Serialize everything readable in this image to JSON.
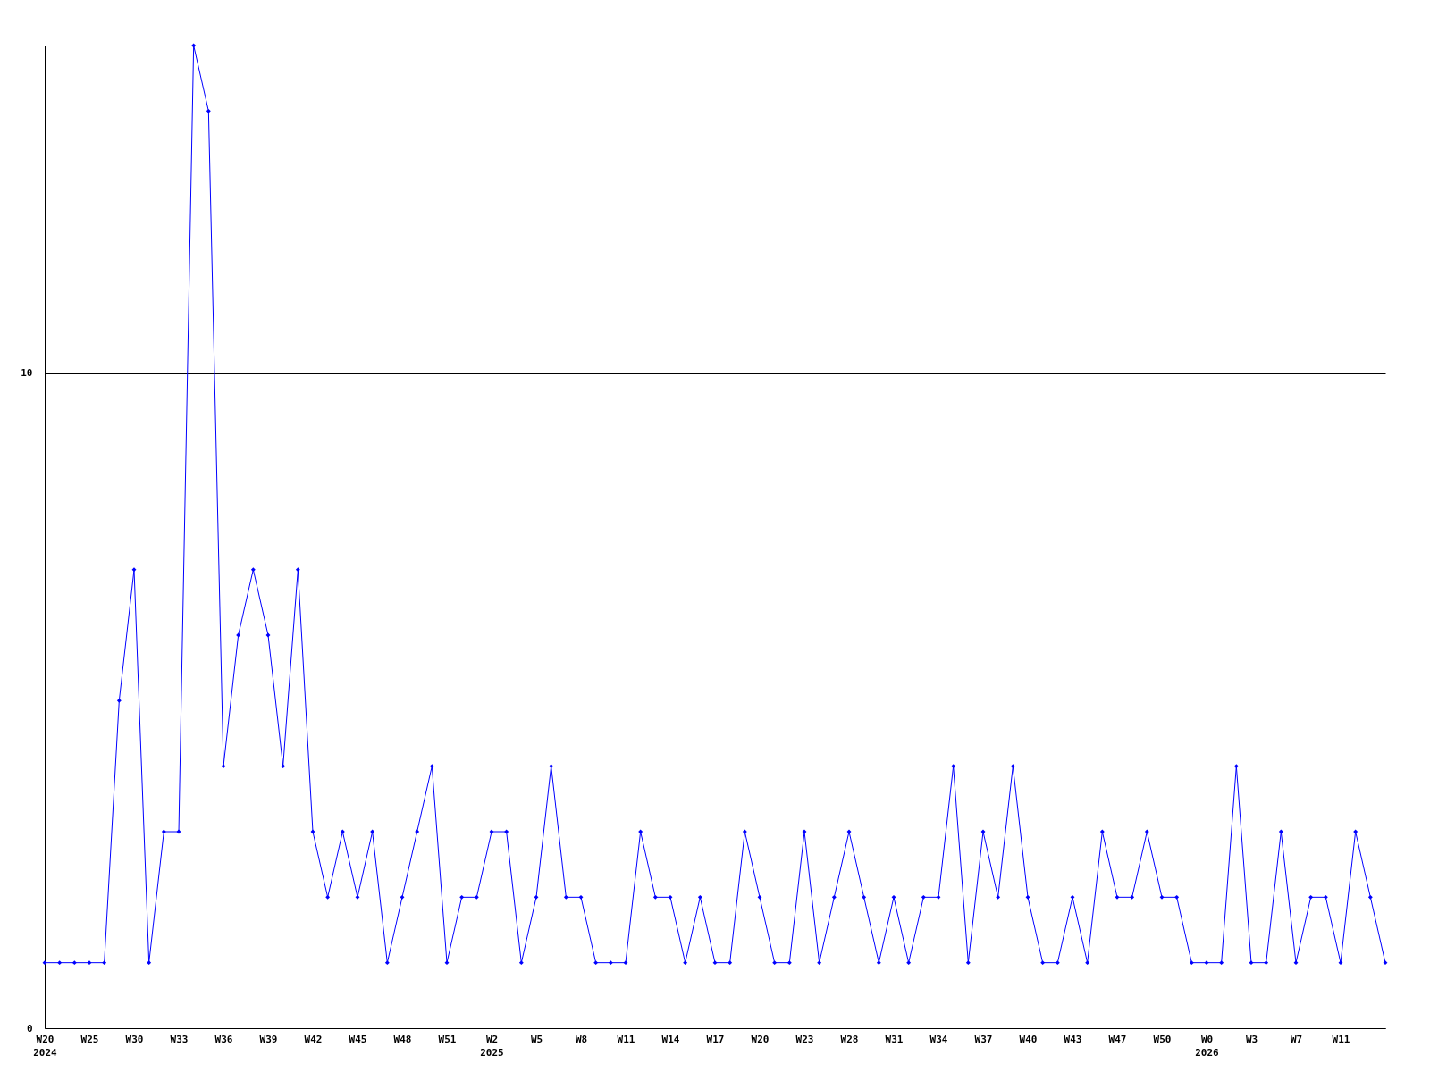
{
  "chart_data": {
    "type": "line",
    "categories": [
      "W20\n2024",
      null,
      null,
      "W25",
      null,
      null,
      "W30",
      null,
      null,
      "W33",
      null,
      null,
      "W36",
      null,
      null,
      "W39",
      null,
      null,
      "W42",
      null,
      null,
      "W45",
      null,
      null,
      "W48",
      null,
      null,
      "W51",
      null,
      null,
      "W2\n2025",
      null,
      null,
      "W5",
      null,
      null,
      "W8",
      null,
      null,
      "W11",
      null,
      null,
      "W14",
      null,
      null,
      "W17",
      null,
      null,
      "W20",
      null,
      null,
      "W23",
      null,
      null,
      "W28",
      null,
      null,
      "W31",
      null,
      null,
      "W34",
      null,
      null,
      "W37",
      null,
      null,
      "W40",
      null,
      null,
      "W43",
      null,
      null,
      "W47",
      null,
      null,
      "W50",
      null,
      null,
      "W0\n2026",
      null,
      null,
      "W3",
      null,
      null,
      "W7",
      null,
      null,
      "W11",
      null,
      null,
      null
    ],
    "series": [
      {
        "color": "#0000ff",
        "values": [
          1,
          1,
          1,
          1,
          1,
          5,
          7,
          1,
          3,
          3,
          15,
          14,
          4,
          6,
          7,
          6,
          4,
          7,
          3,
          2,
          3,
          2,
          3,
          1,
          2,
          3,
          4,
          1,
          2,
          2,
          3,
          3,
          1,
          2,
          4,
          2,
          2,
          1,
          1,
          1,
          3,
          2,
          2,
          1,
          2,
          1,
          1,
          3,
          2,
          1,
          1,
          3,
          1,
          2,
          3,
          2,
          1,
          2,
          1,
          2,
          2,
          4,
          1,
          3,
          2,
          4,
          2,
          1,
          1,
          2,
          1,
          3,
          2,
          2,
          3,
          2,
          2,
          1,
          1,
          1,
          4,
          1,
          1,
          3,
          1,
          2,
          2,
          1,
          3,
          2,
          1
        ]
      }
    ],
    "ylim": [
      0,
      15
    ],
    "yticks": [
      0,
      10
    ],
    "grid": "y",
    "marker": "diamond",
    "line_style": "solid"
  }
}
